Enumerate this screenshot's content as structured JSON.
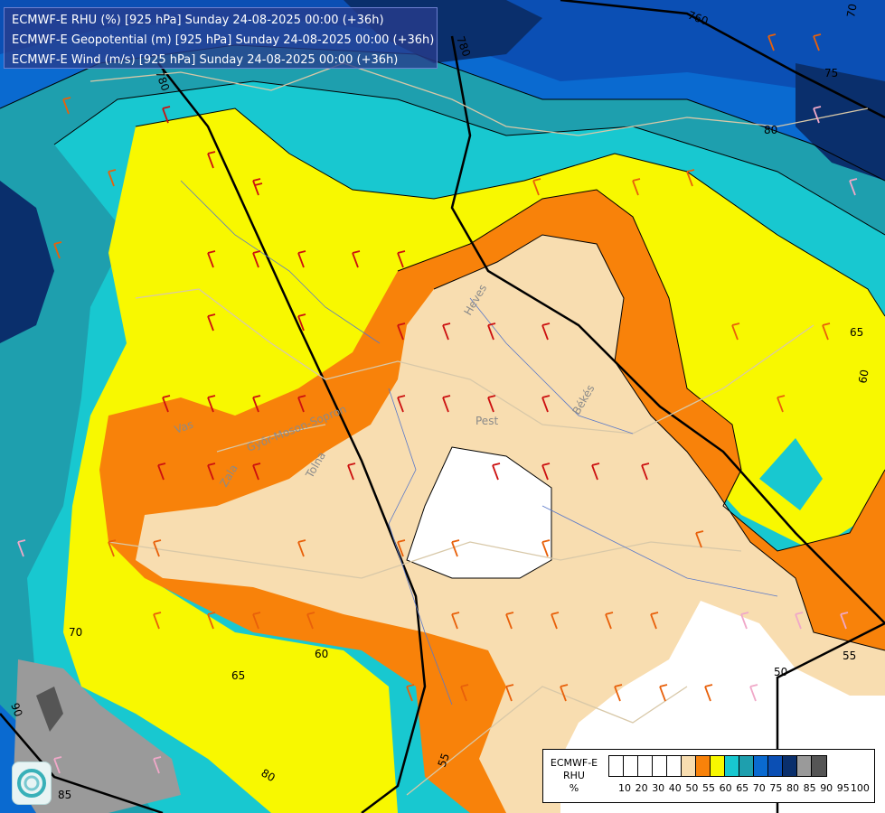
{
  "header": {
    "line1": "ECMWF-E RHU (%) [925 hPa] Sunday 24-08-2025 00:00 (+36h)",
    "line2": "ECMWF-E Geopotential (m) [925 hPa] Sunday 24-08-2025 00:00 (+36h)",
    "line3": "ECMWF-E Wind (m/s) [925 hPa] Sunday 24-08-2025 00:00 (+36h)"
  },
  "legend": {
    "title1": "ECMWF-E",
    "title2": "RHU",
    "title3": "%",
    "colors": [
      "#ffffff",
      "#ffffff",
      "#ffffff",
      "#ffffff",
      "#ffffff",
      "#f8ddb0",
      "#f8820a",
      "#f8f800",
      "#18c8d0",
      "#1e9fae",
      "#0a6ad0",
      "#0b4fb4",
      "#0a2f6c",
      "#9a9a9a",
      "#555555"
    ],
    "ticks": [
      "10",
      "20",
      "30",
      "40",
      "50",
      "55",
      "60",
      "65",
      "70",
      "75",
      "80",
      "85",
      "90",
      "95",
      "100"
    ]
  },
  "places": {
    "heves": "Heves",
    "pest": "Pest",
    "bekes": "Békés",
    "vas": "Vas",
    "zala": "Zala",
    "gyor": "Győr-Moson-Sopron",
    "tolna": "Tolna"
  },
  "geo_labels": {
    "g780": "780",
    "g760": "760",
    "g780b": "780",
    "g70": "70"
  },
  "rhu_labels": {
    "l75": "75",
    "l80a": "80",
    "l65a": "65",
    "l60a": "60",
    "l60b": "60",
    "l65b": "65",
    "l70": "70",
    "l55a": "55",
    "l50": "50",
    "l55b": "55",
    "l80b": "80",
    "l85": "85",
    "l90": "90"
  }
}
